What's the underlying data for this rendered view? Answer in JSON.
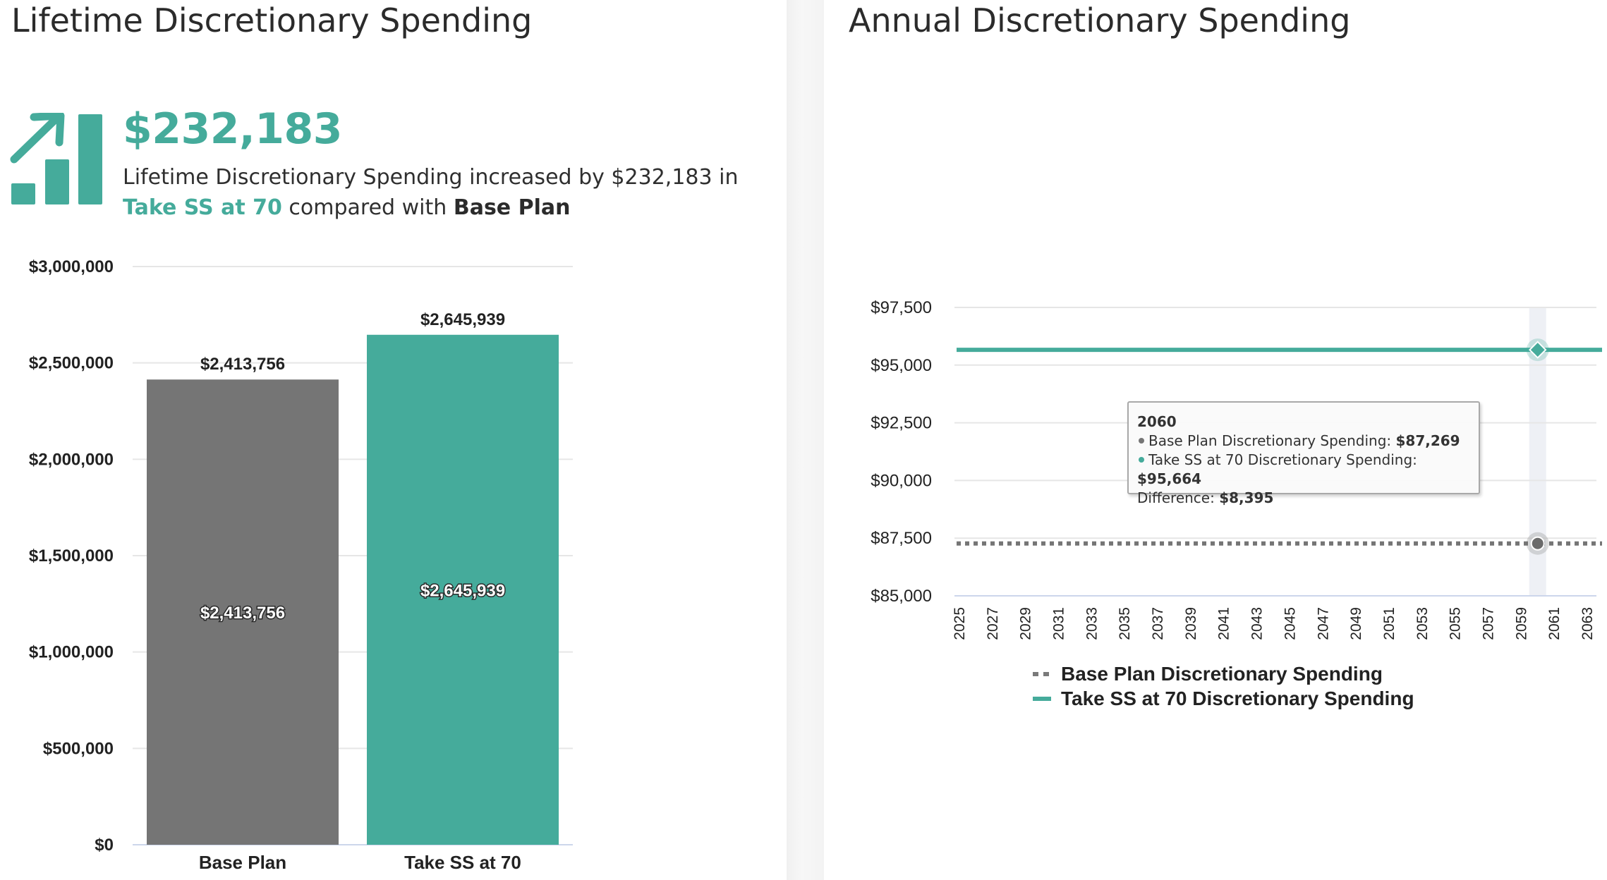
{
  "left": {
    "title": "Lifetime Discretionary Spending",
    "summary_value": "$232,183",
    "summary_text_1": "Lifetime Discretionary Spending increased by $232,183 in",
    "summary_scenario": "Take SS at 70",
    "summary_text_2": "compared with",
    "summary_base": "Base Plan"
  },
  "right": {
    "title": "Annual Discretionary Spending"
  },
  "colors": {
    "accent": "#45ab9b",
    "base": "#757575",
    "grid": "#e6e6e6"
  },
  "chart_data": [
    {
      "type": "bar",
      "title": "Lifetime Discretionary Spending",
      "categories": [
        "Base Plan",
        "Take SS at 70"
      ],
      "values": [
        2413756,
        2645939
      ],
      "value_labels": [
        "$2,413,756",
        "$2,645,939"
      ],
      "colors": [
        "#757575",
        "#45ab9b"
      ],
      "ylim": [
        0,
        3000000
      ],
      "yticks": [
        0,
        500000,
        1000000,
        1500000,
        2000000,
        2500000,
        3000000
      ],
      "ytick_labels": [
        "$0",
        "$500,000",
        "$1,000,000",
        "$1,500,000",
        "$2,000,000",
        "$2,500,000",
        "$3,000,000"
      ],
      "grid": true
    },
    {
      "type": "line",
      "title": "Annual Discretionary Spending",
      "x": [
        2025,
        2026,
        2027,
        2028,
        2029,
        2030,
        2031,
        2032,
        2033,
        2034,
        2035,
        2036,
        2037,
        2038,
        2039,
        2040,
        2041,
        2042,
        2043,
        2044,
        2045,
        2046,
        2047,
        2048,
        2049,
        2050,
        2051,
        2052,
        2053,
        2054,
        2055,
        2056,
        2057,
        2058,
        2059,
        2060,
        2061,
        2062,
        2063
      ],
      "xtick_labels": [
        "2025",
        "2027",
        "2029",
        "2031",
        "2033",
        "2035",
        "2037",
        "2039",
        "2041",
        "2043",
        "2045",
        "2047",
        "2049",
        "2051",
        "2053",
        "2055",
        "2057",
        "2059",
        "2061",
        "2063"
      ],
      "series": [
        {
          "name": "Base Plan Discretionary Spending",
          "value": 87269,
          "style": "dotted",
          "color": "#757575"
        },
        {
          "name": "Take SS at 70 Discretionary Spending",
          "value": 95664,
          "style": "solid",
          "color": "#45ab9b"
        }
      ],
      "ylim": [
        85000,
        97500
      ],
      "yticks": [
        85000,
        87500,
        90000,
        92500,
        95000,
        97500
      ],
      "ytick_labels": [
        "$85,000",
        "$87,500",
        "$90,000",
        "$92,500",
        "$95,000",
        "$97,500"
      ],
      "grid": true,
      "legend_position": "bottom-center",
      "highlight_x": 2060,
      "tooltip": {
        "year": "2060",
        "base_label": "Base Plan Discretionary Spending:",
        "base_value": "$87,269",
        "scenario_label": "Take SS at 70 Discretionary Spending:",
        "scenario_value": "$95,664",
        "difference_label": "Difference:",
        "difference_value": "$8,395"
      }
    }
  ]
}
